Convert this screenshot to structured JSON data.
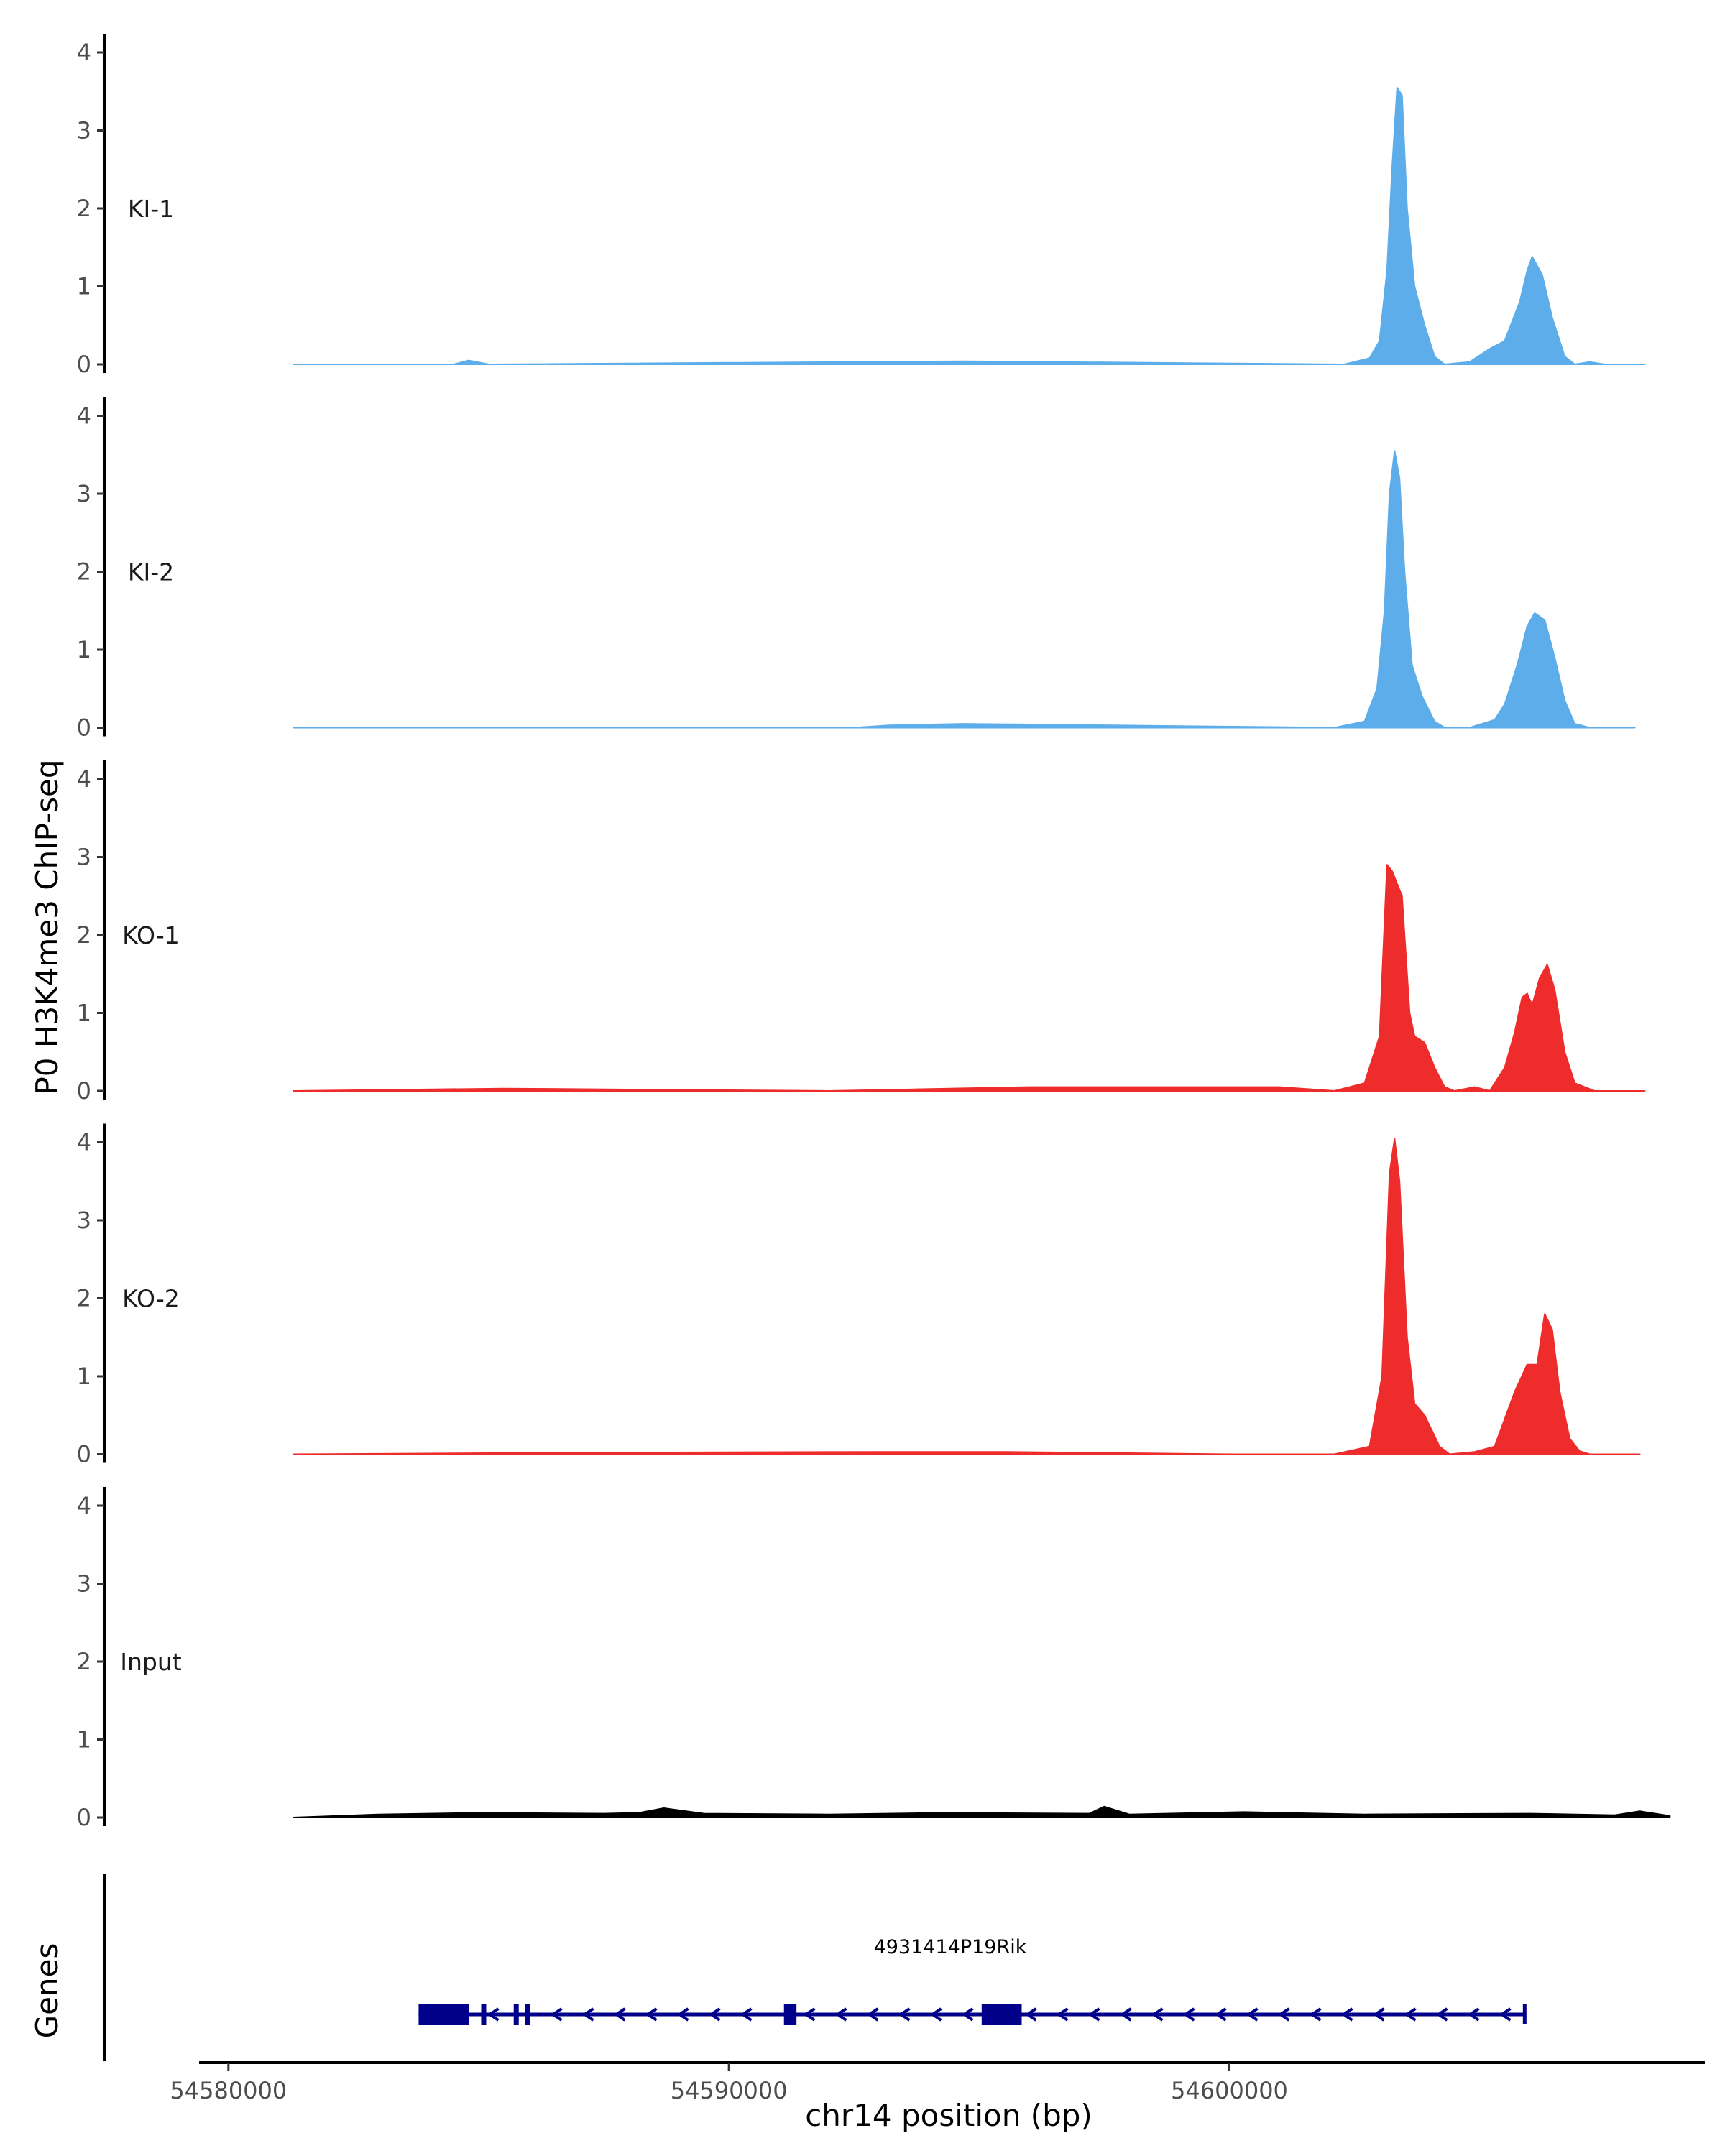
{
  "chart_data": {
    "type": "area",
    "ylabel": "P0 H3K4me3 ChIP-seq",
    "xlabel": "chr14 position (bp)",
    "genes_label": "Genes",
    "xlim": [
      54579500,
      54609500
    ],
    "ylim": [
      0,
      4.2
    ],
    "x_ticks": [
      54580000,
      54590000,
      54600000
    ],
    "x_tick_labels": [
      "54580000",
      "54590000",
      "54600000"
    ],
    "y_ticks": [
      0,
      1,
      2,
      3,
      4
    ],
    "y_tick_labels": [
      "0",
      "1",
      "2",
      "3",
      "4"
    ],
    "colors": {
      "KI": "#5DADEA",
      "KO": "#EE2C2C",
      "Input": "#000000",
      "gene": "#00008B"
    },
    "tracks": [
      {
        "name": "KI-1",
        "color": "#5DADEA",
        "x": [
          54581300,
          54584500,
          54584800,
          54585200,
          54594700,
          54602300,
          54602800,
          54603000,
          54603150,
          54603250,
          54603350,
          54603450,
          54603550,
          54603700,
          54603900,
          54604100,
          54604300,
          54604800,
          54605200,
          54605500,
          54605800,
          54605950,
          54606050,
          54606250,
          54606450,
          54606700,
          54606900,
          54607200,
          54607500,
          54608300
        ],
        "values": [
          0.0,
          0.0,
          0.05,
          0.0,
          0.04,
          0.0,
          0.08,
          0.3,
          1.2,
          2.5,
          3.55,
          3.45,
          2.0,
          1.0,
          0.5,
          0.1,
          0.0,
          0.03,
          0.2,
          0.3,
          0.8,
          1.2,
          1.38,
          1.15,
          0.6,
          0.1,
          0.0,
          0.03,
          0.0,
          0.0
        ]
      },
      {
        "name": "KI-2",
        "color": "#5DADEA",
        "x": [
          54581300,
          54590000,
          54592500,
          54593200,
          54594700,
          54602100,
          54602700,
          54602950,
          54603100,
          54603200,
          54603300,
          54603400,
          54603500,
          54603650,
          54603850,
          54604100,
          54604300,
          54604800,
          54605100,
          54605300,
          54605500,
          54605750,
          54605950,
          54606100,
          54606300,
          54606500,
          54606700,
          54606900,
          54607200,
          54608100
        ],
        "values": [
          0.0,
          0.0,
          0.0,
          0.03,
          0.05,
          0.0,
          0.08,
          0.5,
          1.5,
          3.0,
          3.55,
          3.2,
          2.0,
          0.8,
          0.4,
          0.08,
          0.0,
          0.0,
          0.06,
          0.1,
          0.3,
          0.8,
          1.3,
          1.47,
          1.38,
          0.9,
          0.35,
          0.05,
          0.0,
          0.0
        ]
      },
      {
        "name": "KO-1",
        "color": "#EE2C2C",
        "x": [
          54581300,
          54585500,
          54592000,
          54596000,
          54601000,
          54602100,
          54602700,
          54603000,
          54603150,
          54603250,
          54603450,
          54603600,
          54603700,
          54603900,
          54604100,
          54604300,
          54604500,
          54604900,
          54605200,
          54605500,
          54605700,
          54605850,
          54605950,
          54606050,
          54606200,
          54606350,
          54606500,
          54606700,
          54606900,
          54607300,
          54608300
        ],
        "values": [
          0.0,
          0.03,
          0.0,
          0.05,
          0.05,
          0.0,
          0.1,
          0.7,
          2.9,
          2.82,
          2.5,
          1.0,
          0.7,
          0.62,
          0.3,
          0.05,
          0.0,
          0.05,
          0.0,
          0.3,
          0.75,
          1.2,
          1.25,
          1.1,
          1.45,
          1.62,
          1.3,
          0.5,
          0.1,
          0.0,
          0.0
        ]
      },
      {
        "name": "KO-2",
        "color": "#EE2C2C",
        "x": [
          54581300,
          54587000,
          54593000,
          54595500,
          54600000,
          54602100,
          54602800,
          54603050,
          54603200,
          54603300,
          54603400,
          54603550,
          54603700,
          54603900,
          54604200,
          54604400,
          54604900,
          54605300,
          54605700,
          54605950,
          54606150,
          54606300,
          54606450,
          54606600,
          54606800,
          54607000,
          54607200,
          54608200
        ],
        "values": [
          0.0,
          0.02,
          0.03,
          0.03,
          0.0,
          0.0,
          0.1,
          1.0,
          3.6,
          4.05,
          3.5,
          1.5,
          0.65,
          0.5,
          0.1,
          0.0,
          0.03,
          0.1,
          0.8,
          1.15,
          1.15,
          1.8,
          1.6,
          0.8,
          0.2,
          0.04,
          0.0,
          0.0
        ]
      },
      {
        "name": "Input",
        "color": "#000000",
        "x": [
          54581300,
          54583000,
          54585000,
          54587500,
          54588200,
          54588700,
          54589500,
          54592000,
          54594300,
          54597200,
          54597500,
          54598000,
          54600300,
          54602700,
          54606000,
          54607700,
          54608200,
          54608800
        ],
        "values": [
          0.0,
          0.04,
          0.06,
          0.05,
          0.06,
          0.12,
          0.05,
          0.04,
          0.06,
          0.05,
          0.14,
          0.04,
          0.07,
          0.04,
          0.05,
          0.03,
          0.08,
          0.02
        ]
      }
    ],
    "gene": {
      "name": "4931414P19Rik",
      "strand": "-",
      "start": 54583800,
      "end": 54605900,
      "exons": [
        [
          54583800,
          54584800
        ],
        [
          54585050,
          54585100
        ],
        [
          54585700,
          54585750
        ],
        [
          54585930,
          54585970
        ],
        [
          54591100,
          54591350
        ],
        [
          54595050,
          54595850
        ]
      ]
    }
  }
}
